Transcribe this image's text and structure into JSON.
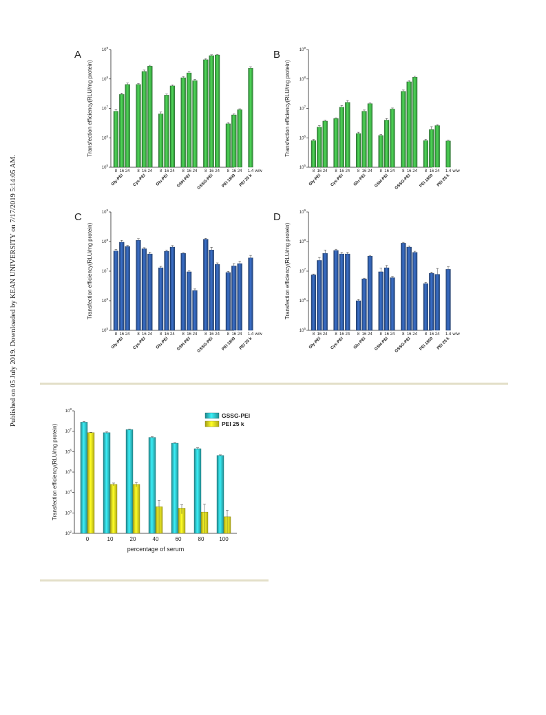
{
  "page": {
    "side_note": "Published on 05 July 2019. Downloaded by KEAN UNIVERSITY on 7/17/2019 5:14:05 AM."
  },
  "colors": {
    "green": "#3fae47",
    "blue": "#2f5aa3",
    "cyan": "#2fc0c6",
    "yellow": "#e9e21f"
  },
  "chart_data": [
    {
      "panel": "A",
      "type": "bar",
      "scale": "log",
      "ylim": [
        100000,
        1000000000
      ],
      "ylabel": "Transfection efficiency(RLU/mg protein)",
      "ticks": [
        "10",
        "10",
        "10",
        "10",
        "10"
      ],
      "tick_exps": [
        "5",
        "6",
        "7",
        "8",
        "9"
      ],
      "unit": "w/w",
      "color": "green",
      "groups": [
        {
          "name": "Gly-PEI",
          "subs": [
            "8",
            "16",
            "24"
          ],
          "values": [
            8000000,
            30000000,
            65000000
          ],
          "err": [
            1000000,
            3000000,
            8000000
          ]
        },
        {
          "name": "Cys-PEI",
          "subs": [
            "8",
            "16",
            "24"
          ],
          "values": [
            65000000,
            180000000,
            270000000
          ],
          "err": [
            5000000,
            20000000,
            20000000
          ]
        },
        {
          "name": "Glu-PEI",
          "subs": [
            "8",
            "16",
            "24"
          ],
          "values": [
            6500000,
            28000000,
            58000000
          ],
          "err": [
            1000000,
            3000000,
            5000000
          ]
        },
        {
          "name": "GSH-PEI",
          "subs": [
            "8",
            "16",
            "24"
          ],
          "values": [
            110000000,
            160000000,
            88000000
          ],
          "err": [
            10000000,
            20000000,
            8000000
          ]
        },
        {
          "name": "GSSG-PEI",
          "subs": [
            "8",
            "16",
            "24"
          ],
          "values": [
            450000000,
            620000000,
            650000000
          ],
          "err": [
            40000000,
            40000000,
            30000000
          ]
        },
        {
          "name": "PEI 1800",
          "subs": [
            "8",
            "16",
            "24"
          ],
          "values": [
            3000000,
            6000000,
            9000000
          ],
          "err": [
            300000,
            500000,
            700000
          ]
        },
        {
          "name": "PEI 25 k",
          "subs": [
            "1.4"
          ],
          "values": [
            230000000
          ],
          "err": [
            30000000
          ]
        }
      ]
    },
    {
      "panel": "B",
      "type": "bar",
      "scale": "log",
      "ylim": [
        100000,
        1000000000
      ],
      "ylabel": "Transfection efficiency(RLU/mg protein)",
      "ticks": [
        "10",
        "10",
        "10",
        "10",
        "10"
      ],
      "tick_exps": [
        "5",
        "6",
        "7",
        "8",
        "9"
      ],
      "unit": "w/w",
      "color": "green",
      "groups": [
        {
          "name": "Gly-PEI",
          "subs": [
            "8",
            "16",
            "24"
          ],
          "values": [
            800000,
            2300000,
            3700000
          ],
          "err": [
            80000,
            300000,
            300000
          ]
        },
        {
          "name": "Cys-PEI",
          "subs": [
            "8",
            "16",
            "24"
          ],
          "values": [
            4500000,
            11000000,
            16000000
          ],
          "err": [
            300000,
            1500000,
            2500000
          ]
        },
        {
          "name": "Glu-PEI",
          "subs": [
            "8",
            "16",
            "24"
          ],
          "values": [
            1400000,
            8000000,
            14500000
          ],
          "err": [
            150000,
            800000,
            800000
          ]
        },
        {
          "name": "GSH-PEI",
          "subs": [
            "8",
            "16",
            "24"
          ],
          "values": [
            1200000,
            4000000,
            9500000
          ],
          "err": [
            100000,
            500000,
            800000
          ]
        },
        {
          "name": "GSSG-PEI",
          "subs": [
            "8",
            "16",
            "24"
          ],
          "values": [
            38000000,
            80000000,
            115000000
          ],
          "err": [
            4000000,
            8000000,
            8000000
          ]
        },
        {
          "name": "PEI 1800",
          "subs": [
            "8",
            "16",
            "24"
          ],
          "values": [
            800000,
            1900000,
            2600000
          ],
          "err": [
            100000,
            500000,
            200000
          ]
        },
        {
          "name": "PEI 25 k",
          "subs": [
            "1.4"
          ],
          "values": [
            780000
          ],
          "err": [
            50000
          ]
        }
      ]
    },
    {
      "panel": "C",
      "type": "bar",
      "scale": "log",
      "ylim": [
        100000,
        1000000000
      ],
      "ylabel": "Transfection efficiency(RLU/mg protein)",
      "ticks": [
        "10",
        "10",
        "10",
        "10",
        "10"
      ],
      "tick_exps": [
        "5",
        "6",
        "7",
        "8",
        "9"
      ],
      "unit": "w/w",
      "color": "blue",
      "groups": [
        {
          "name": "Gly-PEI",
          "subs": [
            "8",
            "16",
            "24"
          ],
          "values": [
            48000000,
            95000000,
            68000000
          ],
          "err": [
            6000000,
            15000000,
            6000000
          ]
        },
        {
          "name": "Cys-PEI",
          "subs": [
            "8",
            "16",
            "24"
          ],
          "values": [
            110000000,
            57000000,
            38000000
          ],
          "err": [
            15000000,
            5000000,
            6000000
          ]
        },
        {
          "name": "Glu-PEI",
          "subs": [
            "8",
            "16",
            "24"
          ],
          "values": [
            13000000,
            47000000,
            65000000
          ],
          "err": [
            1500000,
            5000000,
            8000000
          ]
        },
        {
          "name": "GSH-PEI",
          "subs": [
            "8",
            "16",
            "24"
          ],
          "values": [
            40000000,
            9500000,
            2200000
          ],
          "err": [
            2000000,
            700000,
            300000
          ]
        },
        {
          "name": "GSSG-PEI",
          "subs": [
            "8",
            "16",
            "24"
          ],
          "values": [
            120000000,
            52000000,
            17000000
          ],
          "err": [
            8000000,
            12000000,
            2000000
          ]
        },
        {
          "name": "PEI 1800",
          "subs": [
            "8",
            "16",
            "24"
          ],
          "values": [
            9000000,
            15000000,
            18000000
          ],
          "err": [
            800000,
            3000000,
            4000000
          ]
        },
        {
          "name": "PEI 25 k",
          "subs": [
            "1.4"
          ],
          "values": [
            28000000
          ],
          "err": [
            6000000
          ]
        }
      ]
    },
    {
      "panel": "D",
      "type": "bar",
      "scale": "log",
      "ylim": [
        100000,
        1000000000
      ],
      "ylabel": "Transfection efficiency(RLU/mg protein)",
      "ticks": [
        "10",
        "10",
        "10",
        "10",
        "10"
      ],
      "tick_exps": [
        "5",
        "6",
        "7",
        "8",
        "9"
      ],
      "unit": "w/w",
      "color": "blue",
      "groups": [
        {
          "name": "Gly-PEI",
          "subs": [
            "8",
            "16",
            "24"
          ],
          "values": [
            7500000,
            23000000,
            40000000
          ],
          "err": [
            500000,
            6000000,
            12000000
          ]
        },
        {
          "name": "Cys-PEI",
          "subs": [
            "8",
            "16",
            "24"
          ],
          "values": [
            50000000,
            38000000,
            38000000
          ],
          "err": [
            5000000,
            5000000,
            5000000
          ]
        },
        {
          "name": "Glu-PEI",
          "subs": [
            "8",
            "16",
            "24"
          ],
          "values": [
            1000000,
            5500000,
            32000000
          ],
          "err": [
            100000,
            300000,
            2000000
          ]
        },
        {
          "name": "GSH-PEI",
          "subs": [
            "8",
            "16",
            "24"
          ],
          "values": [
            9500000,
            13000000,
            6000000
          ],
          "err": [
            3000000,
            2500000,
            600000
          ]
        },
        {
          "name": "GSSG-PEI",
          "subs": [
            "8",
            "16",
            "24"
          ],
          "values": [
            88000000,
            65000000,
            43000000
          ],
          "err": [
            6000000,
            6000000,
            4000000
          ]
        },
        {
          "name": "PEI 1800",
          "subs": [
            "8",
            "16",
            "24"
          ],
          "values": [
            3800000,
            8500000,
            7800000
          ],
          "err": [
            400000,
            800000,
            4500000
          ]
        },
        {
          "name": "PEI 25 k",
          "subs": [
            "1.4"
          ],
          "values": [
            11500000
          ],
          "err": [
            2500000
          ]
        }
      ]
    },
    {
      "panel": "serum",
      "type": "bar",
      "scale": "log",
      "ylim": [
        100,
        100000000
      ],
      "ylabel": "Transfection efficiency(RLU/mg protein)",
      "ticks": [
        "10",
        "10",
        "10",
        "10",
        "10",
        "10",
        "10"
      ],
      "tick_exps": [
        "2",
        "3",
        "4",
        "5",
        "6",
        "7",
        "8"
      ],
      "xlabel": "percentage of serum",
      "categories": [
        "0",
        "10",
        "20",
        "40",
        "60",
        "80",
        "100"
      ],
      "series": [
        {
          "name": "GSSG-PEI",
          "color": "cyan",
          "values": [
            28000000,
            8500000,
            12000000,
            5000000,
            2600000,
            1400000,
            650000
          ],
          "err": [
            2000000,
            1000000,
            800000,
            400000,
            150000,
            150000,
            50000
          ]
        },
        {
          "name": "PEI 25 k",
          "color": "yellow",
          "values": [
            8500000,
            25000,
            25000,
            2000,
            1700,
            1100,
            650
          ],
          "err": [
            400000,
            4000,
            6000,
            2000,
            800,
            1600,
            700
          ]
        }
      ]
    }
  ]
}
